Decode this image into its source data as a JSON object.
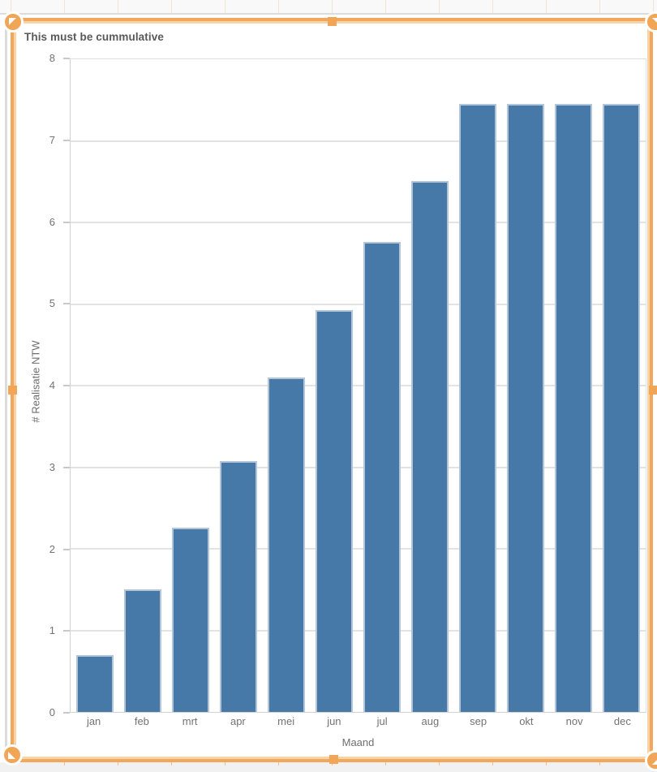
{
  "chart_data": {
    "type": "bar",
    "title": "This must be cummulative",
    "categories": [
      "jan",
      "feb",
      "mrt",
      "apr",
      "mei",
      "jun",
      "jul",
      "aug",
      "sep",
      "okt",
      "nov",
      "dec"
    ],
    "values": [
      0.7,
      1.5,
      2.26,
      3.07,
      4.1,
      4.93,
      5.76,
      6.51,
      7.45,
      7.45,
      7.45,
      7.45
    ],
    "xlabel": "Maand",
    "ylabel": "# Realisatie NTW",
    "ylim": [
      0,
      8
    ],
    "yticks": [
      0,
      1,
      2,
      3,
      4,
      5,
      6,
      7,
      8
    ],
    "grid": true,
    "legend": "none",
    "bar_color": "#4678a8",
    "bar_border_color": "#b3c6d9"
  },
  "ui": {
    "selection_accent_color": "#f2a75c",
    "handle_color": "#f1a557",
    "gridline_color": "#e3e3e3",
    "resize_arrow_icon": "corner-triangle"
  }
}
